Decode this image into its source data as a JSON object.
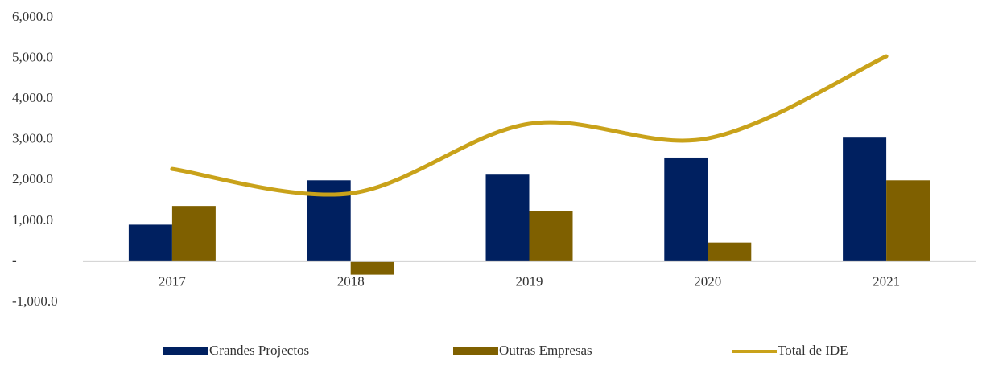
{
  "chart_data": {
    "type": "bar-line",
    "categories": [
      "2017",
      "2018",
      "2019",
      "2020",
      "2021"
    ],
    "series": [
      {
        "name": "Grandes Projectos",
        "color": "#002060",
        "type": "bar",
        "values": [
          910,
          2000,
          2140,
          2560,
          3050
        ]
      },
      {
        "name": "Outras Empresas",
        "color": "#7f6000",
        "type": "bar",
        "values": [
          1370,
          -320,
          1250,
          470,
          2000
        ]
      },
      {
        "name": "Total de IDE",
        "color": "#c9a21a",
        "type": "line",
        "values": [
          2280,
          1680,
          3390,
          3030,
          5050
        ]
      }
    ],
    "ylim": [
      -1000,
      6000
    ],
    "yticks": [
      {
        "value": -1000,
        "label": "-1,000.0"
      },
      {
        "value": 0,
        "label": "-"
      },
      {
        "value": 1000,
        "label": "1,000.0"
      },
      {
        "value": 2000,
        "label": "2,000.0"
      },
      {
        "value": 3000,
        "label": "3,000.0"
      },
      {
        "value": 4000,
        "label": "4,000.0"
      },
      {
        "value": 5000,
        "label": "5,000.0"
      },
      {
        "value": 6000,
        "label": "6,000.0"
      }
    ],
    "grid": false,
    "legend": "bottom"
  }
}
